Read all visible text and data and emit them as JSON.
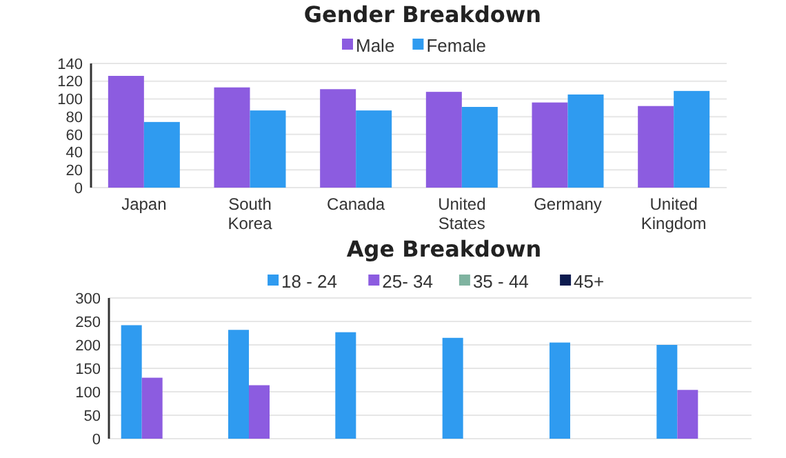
{
  "chart_data": [
    {
      "type": "bar",
      "title": "Gender Breakdown",
      "categories": [
        "Japan",
        "South Korea",
        "Canada",
        "United States",
        "Germany",
        "United Kingdom"
      ],
      "series": [
        {
          "name": "Male",
          "color": "#8c5ce0",
          "values": [
            126,
            113,
            111,
            108,
            96,
            92
          ]
        },
        {
          "name": "Female",
          "color": "#2f9bf0",
          "values": [
            74,
            87,
            87,
            91,
            105,
            109
          ]
        }
      ],
      "ylim": [
        0,
        140
      ],
      "yticks": [
        0,
        20,
        40,
        60,
        80,
        100,
        120,
        140
      ],
      "grid": "y",
      "legend": "top"
    },
    {
      "type": "bar",
      "title": "Age Breakdown",
      "categories": [
        null,
        null,
        null,
        null,
        null,
        null
      ],
      "series": [
        {
          "name": "18 - 24",
          "color": "#2f9bf0",
          "values": [
            242,
            232,
            227,
            215,
            205,
            200
          ]
        },
        {
          "name": "25- 34",
          "color": "#8c5ce0",
          "values": [
            130,
            114,
            null,
            null,
            null,
            104
          ]
        },
        {
          "name": "35 - 44",
          "color": "#7fb3a0",
          "values": [
            null,
            null,
            null,
            null,
            null,
            null
          ]
        },
        {
          "name": "45+",
          "color": "#0d1b4f",
          "values": [
            null,
            null,
            null,
            null,
            null,
            null
          ]
        }
      ],
      "ylim": [
        0,
        300
      ],
      "yticks": [
        0,
        50,
        100,
        150,
        200,
        250,
        300
      ],
      "grid": "y",
      "legend": "top"
    }
  ]
}
